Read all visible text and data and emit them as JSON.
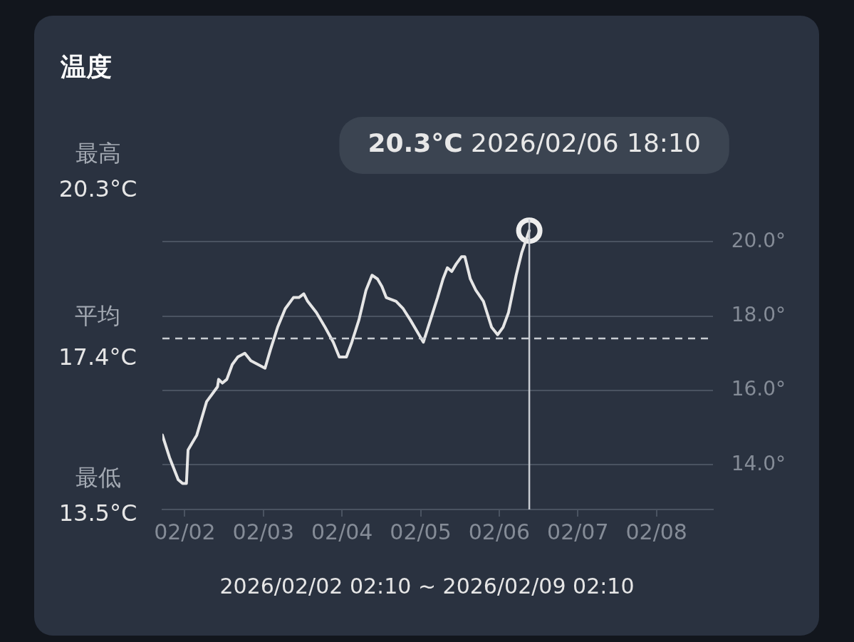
{
  "chart_data": {
    "type": "line",
    "title": "温度",
    "x": [
      "2026-02-02T02:10",
      "2026-02-02T04:20",
      "2026-02-02T07:00",
      "2026-02-02T08:20",
      "2026-02-02T09:30",
      "2026-02-02T10:00",
      "2026-02-02T11:20",
      "2026-02-02T12:40",
      "2026-02-02T14:20",
      "2026-02-02T15:40",
      "2026-02-02T17:20",
      "2026-02-02T19:00",
      "2026-02-02T19:20",
      "2026-02-02T20:30",
      "2026-02-02T21:50",
      "2026-02-02T22:40",
      "2026-02-02T23:30",
      "2026-02-03T01:10",
      "2026-02-03T03:20",
      "2026-02-03T05:10",
      "2026-02-03T07:20",
      "2026-02-03T09:30",
      "2026-02-03T11:10",
      "2026-02-03T13:20",
      "2026-02-03T15:40",
      "2026-02-03T18:10",
      "2026-02-03T19:50",
      "2026-02-03T21:20",
      "2026-02-03T22:30",
      "2026-02-04T01:10",
      "2026-02-04T03:50",
      "2026-02-04T06:20",
      "2026-02-04T08:10",
      "2026-02-04T10:20",
      "2026-02-04T12:00",
      "2026-02-04T14:10",
      "2026-02-04T16:20",
      "2026-02-04T18:10",
      "2026-02-04T19:50",
      "2026-02-04T21:10",
      "2026-02-04T22:30",
      "2026-02-05T01:30",
      "2026-02-05T03:40",
      "2026-02-05T05:50",
      "2026-02-05T08:30",
      "2026-02-05T09:50",
      "2026-02-05T12:00",
      "2026-02-05T14:10",
      "2026-02-05T15:50",
      "2026-02-05T17:10",
      "2026-02-05T18:30",
      "2026-02-05T19:50",
      "2026-02-05T21:30",
      "2026-02-05T22:30",
      "2026-02-06T00:10",
      "2026-02-06T01:50",
      "2026-02-06T04:10",
      "2026-02-06T06:40",
      "2026-02-06T08:30",
      "2026-02-06T10:10",
      "2026-02-06T11:50",
      "2026-02-06T14:10",
      "2026-02-06T15:50",
      "2026-02-06T18:10"
    ],
    "series": [
      {
        "color": "#e6e6e6",
        "values": [
          14.8,
          14.2,
          13.6,
          13.5,
          13.5,
          14.4,
          14.6,
          14.8,
          15.3,
          15.7,
          15.9,
          16.1,
          16.3,
          16.2,
          16.3,
          16.5,
          16.7,
          16.9,
          17.0,
          16.8,
          16.7,
          16.6,
          17.1,
          17.7,
          18.2,
          18.5,
          18.5,
          18.6,
          18.4,
          18.1,
          17.7,
          17.3,
          16.9,
          16.9,
          17.3,
          17.9,
          18.7,
          19.1,
          19.0,
          18.8,
          18.5,
          18.4,
          18.2,
          17.9,
          17.5,
          17.3,
          17.9,
          18.5,
          19.0,
          19.3,
          19.2,
          19.4,
          19.6,
          19.6,
          19.0,
          18.7,
          18.4,
          17.7,
          17.5,
          17.7,
          18.1,
          19.1,
          19.7,
          20.3
        ]
      }
    ],
    "xlim": [
      "2026-02-02T02:10",
      "2026-02-09T02:10"
    ],
    "xticks": [
      {
        "value": "2026-02-02T09:00",
        "label": "02/02"
      },
      {
        "value": "2026-02-03T09:00",
        "label": "02/03"
      },
      {
        "value": "2026-02-04T09:00",
        "label": "02/04"
      },
      {
        "value": "2026-02-05T09:00",
        "label": "02/05"
      },
      {
        "value": "2026-02-06T09:00",
        "label": "02/06"
      },
      {
        "value": "2026-02-07T09:00",
        "label": "02/07"
      },
      {
        "value": "2026-02-08T09:00",
        "label": "02/08"
      }
    ],
    "ylim": [
      12.8,
      20.6
    ],
    "yticks": [
      {
        "value": 14,
        "label": "14.0°"
      },
      {
        "value": 16,
        "label": "16.0°"
      },
      {
        "value": 18,
        "label": "18.0°"
      },
      {
        "value": 20,
        "label": "20.0°"
      }
    ],
    "grid": "y",
    "marker": "none",
    "line_style": "solid",
    "legend": false,
    "ref_lines": [
      {
        "axis": "y",
        "value": 17.4,
        "label": "平均\n17.4°C",
        "line_style": "dashed",
        "color": "#c8ccd2"
      },
      {
        "axis": "x",
        "value": "2026-02-06T18:10",
        "line_style": "solid",
        "color": "#c8ccd2"
      }
    ],
    "annotations": [
      "最高\n20.3°C",
      "最低\n13.5°C",
      {
        "text": "20.3°C 2026/02/06 18:10",
        "x": "2026-02-06T18:10",
        "y": 20.3
      },
      "2026/02/02 02:10 ~ 2026/02/09 02:10"
    ]
  }
}
